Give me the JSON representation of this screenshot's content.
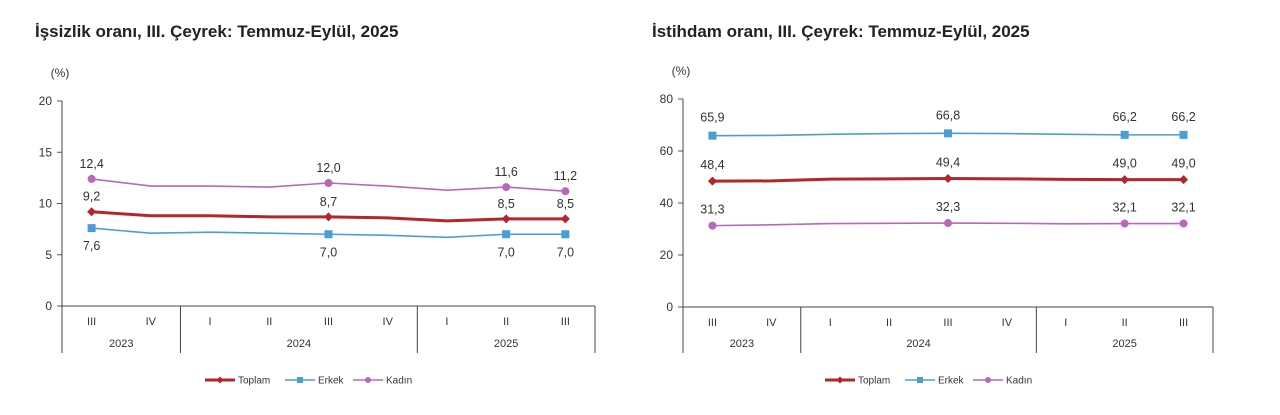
{
  "chart_data": [
    {
      "type": "line",
      "title": "İşsizlik oranı, III. Çeyrek: Temmuz-Eylül, 2025",
      "ylabel": "(%)",
      "ylim": [
        0,
        20
      ],
      "yticks": [
        "0",
        "5",
        "10",
        "15",
        "20"
      ],
      "quarters": [
        "III",
        "IV",
        "I",
        "II",
        "III",
        "IV",
        "I",
        "II",
        "III"
      ],
      "years": [
        "2023",
        "2024",
        "2025"
      ],
      "series": [
        {
          "name": "Toplam",
          "color": "#b3262b",
          "marker": "diamond",
          "values": [
            9.2,
            8.8,
            8.8,
            8.7,
            8.7,
            8.6,
            8.3,
            8.5,
            8.5
          ],
          "labels": [
            "9,2",
            "",
            "",
            "",
            "8,7",
            "",
            "",
            "8,5",
            "8,5"
          ]
        },
        {
          "name": "Erkek",
          "color": "#4a9ed4",
          "marker": "square",
          "values": [
            7.6,
            7.1,
            7.2,
            7.1,
            7.0,
            6.9,
            6.7,
            7.0,
            7.0
          ],
          "labels": [
            "7,6",
            "",
            "",
            "",
            "7,0",
            "",
            "",
            "7,0",
            "7,0"
          ]
        },
        {
          "name": "Kadın",
          "color": "#b768b9",
          "marker": "circle",
          "values": [
            12.4,
            11.7,
            11.7,
            11.6,
            12.0,
            11.7,
            11.3,
            11.6,
            11.2
          ],
          "labels": [
            "12,4",
            "",
            "",
            "",
            "12,0",
            "",
            "",
            "11,6",
            "11,2"
          ]
        }
      ]
    },
    {
      "type": "line",
      "title": "İstihdam oranı, III. Çeyrek: Temmuz-Eylül, 2025",
      "ylabel": "(%)",
      "ylim": [
        0,
        80
      ],
      "yticks": [
        "0",
        "20",
        "40",
        "60",
        "80"
      ],
      "quarters": [
        "III",
        "IV",
        "I",
        "II",
        "III",
        "IV",
        "I",
        "II",
        "III"
      ],
      "years": [
        "2023",
        "2024",
        "2025"
      ],
      "series": [
        {
          "name": "Toplam",
          "color": "#b3262b",
          "marker": "diamond",
          "values": [
            48.4,
            48.5,
            49.2,
            49.3,
            49.4,
            49.3,
            49.1,
            49.0,
            49.0
          ],
          "labels": [
            "48,4",
            "",
            "",
            "",
            "49,4",
            "",
            "",
            "49,0",
            "49,0"
          ]
        },
        {
          "name": "Erkek",
          "color": "#4a9ed4",
          "marker": "square",
          "values": [
            65.9,
            66.0,
            66.4,
            66.7,
            66.8,
            66.7,
            66.4,
            66.2,
            66.2
          ],
          "labels": [
            "65,9",
            "",
            "",
            "",
            "66,8",
            "",
            "",
            "66,2",
            "66,2"
          ]
        },
        {
          "name": "Kadın",
          "color": "#b768b9",
          "marker": "circle",
          "values": [
            31.3,
            31.6,
            32.1,
            32.2,
            32.3,
            32.2,
            32.0,
            32.1,
            32.1
          ],
          "labels": [
            "31,3",
            "",
            "",
            "",
            "32,3",
            "",
            "",
            "32,1",
            "32,1"
          ]
        }
      ]
    }
  ]
}
